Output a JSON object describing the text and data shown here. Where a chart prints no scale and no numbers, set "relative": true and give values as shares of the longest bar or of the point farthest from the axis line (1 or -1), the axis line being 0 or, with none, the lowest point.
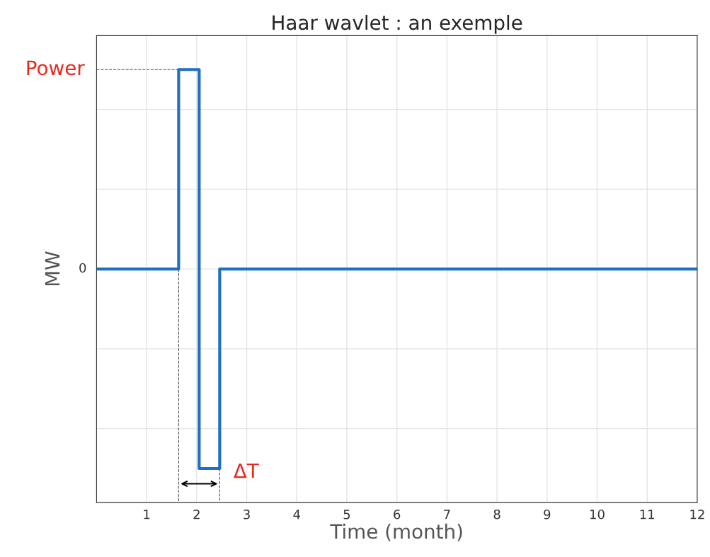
{
  "chart_data": {
    "type": "step",
    "title": "Haar wavlet : an exemple",
    "xlabel": "Time (month)",
    "ylabel": "MW",
    "x": [
      0,
      1.64,
      2.05,
      2.46,
      12
    ],
    "series": [
      {
        "color": "#1f6fc5",
        "values": [
          0,
          1,
          -1,
          0,
          0
        ]
      }
    ],
    "relative": true,
    "xlim": [
      0,
      12
    ],
    "xticks": [
      1,
      2,
      3,
      4,
      5,
      6,
      7,
      8,
      9,
      10,
      11,
      12
    ],
    "grid": true,
    "annotations": [
      {
        "text": "Power",
        "x": 1.64,
        "y": 1
      },
      {
        "text": "ΔT",
        "x": 2.46,
        "y": -1
      },
      {
        "text": "0",
        "x": 0,
        "y": 0
      }
    ]
  }
}
